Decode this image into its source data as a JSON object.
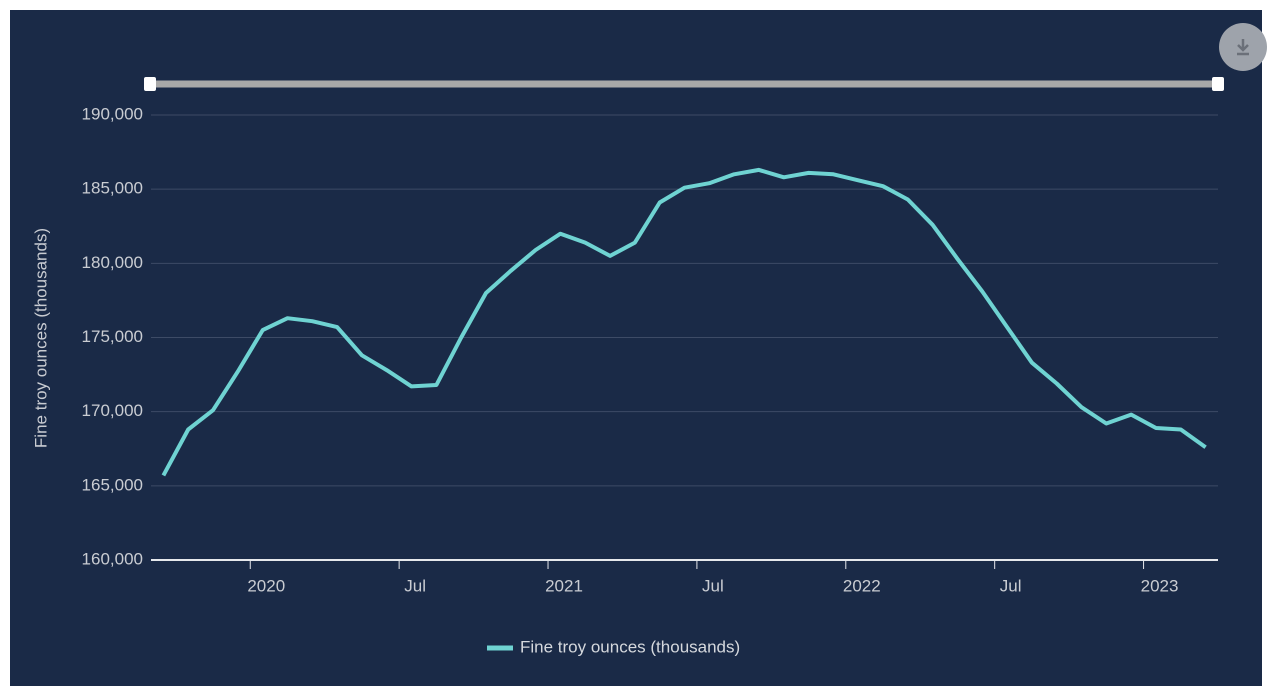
{
  "chart_data": {
    "type": "line",
    "y_label": "Fine troy ounces (thousands)",
    "x": [
      "2019-09",
      "2019-10",
      "2019-11",
      "2019-12",
      "2020-01",
      "2020-02",
      "2020-03",
      "2020-04",
      "2020-05",
      "2020-06",
      "2020-07",
      "2020-08",
      "2020-09",
      "2020-10",
      "2020-11",
      "2020-12",
      "2021-01",
      "2021-02",
      "2021-03",
      "2021-04",
      "2021-05",
      "2021-06",
      "2021-07",
      "2021-08",
      "2021-09",
      "2021-10",
      "2021-11",
      "2021-12",
      "2022-01",
      "2022-02",
      "2022-03",
      "2022-04",
      "2022-05",
      "2022-06",
      "2022-07",
      "2022-08",
      "2022-09",
      "2022-10",
      "2022-11",
      "2022-12",
      "2023-01",
      "2023-02",
      "2023-03"
    ],
    "series": [
      {
        "name": "Fine troy ounces (thousands)",
        "color": "#6fd3d2",
        "values": [
          165700,
          168800,
          170100,
          172700,
          175500,
          176300,
          176100,
          175700,
          173800,
          172800,
          171700,
          171800,
          175000,
          178000,
          179500,
          180900,
          182000,
          181400,
          180500,
          181400,
          184100,
          185100,
          185400,
          186000,
          186300,
          185800,
          186100,
          186000,
          185600,
          185200,
          184300,
          182600,
          180300,
          178100,
          175700,
          173300,
          171900,
          170300,
          169200,
          169800,
          168900,
          168800,
          167600
        ]
      }
    ],
    "xlim": [
      "2019-09",
      "2023-04"
    ],
    "xticks": [
      {
        "value": "2020-01",
        "label": "2020"
      },
      {
        "value": "2020-07",
        "label": "Jul"
      },
      {
        "value": "2021-01",
        "label": "2021"
      },
      {
        "value": "2021-07",
        "label": "Jul"
      },
      {
        "value": "2022-01",
        "label": "2022"
      },
      {
        "value": "2022-07",
        "label": "Jul"
      },
      {
        "value": "2023-01",
        "label": "2023"
      }
    ],
    "ylim": [
      160000,
      190000
    ],
    "yticks": [
      {
        "value": 160000,
        "label": "160,000"
      },
      {
        "value": 165000,
        "label": "165,000"
      },
      {
        "value": 170000,
        "label": "170,000"
      },
      {
        "value": 175000,
        "label": "175,000"
      },
      {
        "value": 180000,
        "label": "180,000"
      },
      {
        "value": 185000,
        "label": "185,000"
      },
      {
        "value": 190000,
        "label": "190,000"
      }
    ],
    "grid": true
  }
}
